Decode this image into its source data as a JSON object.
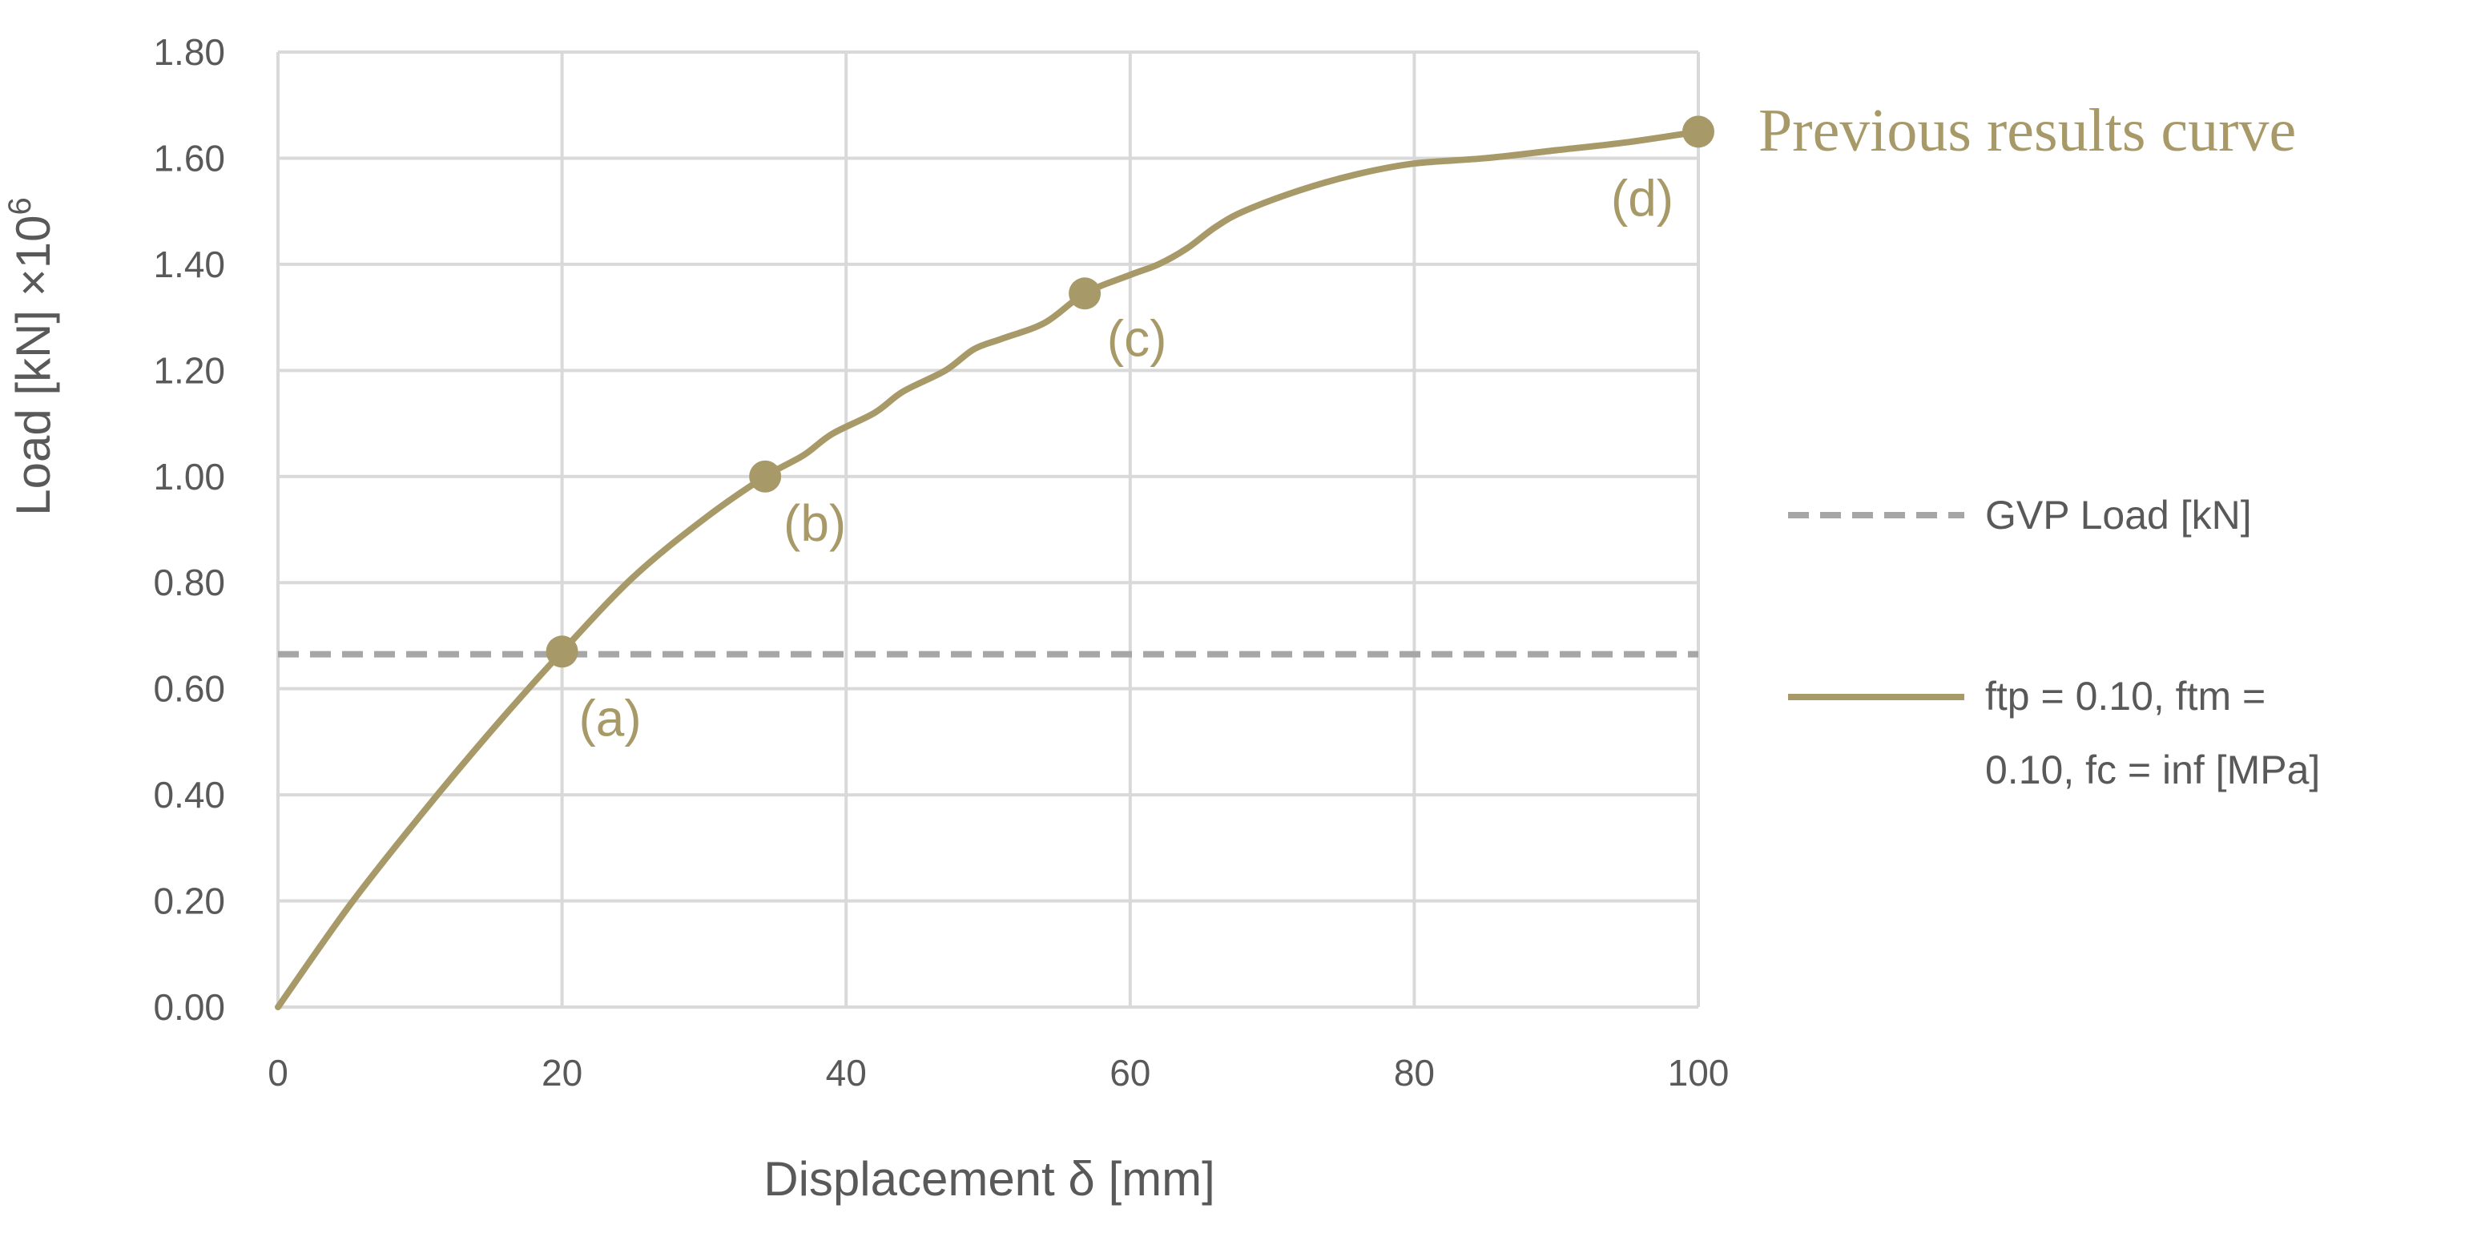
{
  "chart_data": {
    "type": "line",
    "xlabel": "Displacement δ [mm]",
    "ylabel": "Load [kN]  ×10",
    "ylabel_exponent": "6",
    "xlim": [
      0,
      100
    ],
    "ylim": [
      0,
      1.8
    ],
    "x_ticks": [
      "0",
      "20",
      "40",
      "60",
      "80",
      "100"
    ],
    "y_ticks": [
      "0.00",
      "0.20",
      "0.40",
      "0.60",
      "0.80",
      "1.00",
      "1.20",
      "1.40",
      "1.60",
      "1.80"
    ],
    "grid": true,
    "legend_position": "right",
    "series": [
      {
        "name": "GVP Load [kN]",
        "style": "dashed",
        "color": "#A6A6A6",
        "x": [
          0,
          100
        ],
        "y": [
          0.665,
          0.665
        ]
      },
      {
        "name": "ftp = 0.10, ftm = 0.10, fc = inf [MPa]",
        "legend_lines": [
          "ftp = 0.10, ftm =",
          "0.10, fc = inf [MPa]"
        ],
        "style": "solid",
        "color": "#A89A68",
        "x": [
          0,
          5,
          10,
          15,
          20,
          25,
          30,
          34.3,
          37,
          39,
          42,
          44,
          47,
          49,
          51,
          54,
          56.8,
          60,
          62,
          64,
          66,
          68,
          72,
          76,
          80,
          85,
          90,
          95,
          100
        ],
        "y": [
          0,
          0.19,
          0.36,
          0.52,
          0.67,
          0.81,
          0.92,
          1.0,
          1.04,
          1.08,
          1.12,
          1.16,
          1.2,
          1.24,
          1.26,
          1.29,
          1.345,
          1.38,
          1.4,
          1.43,
          1.47,
          1.5,
          1.54,
          1.57,
          1.59,
          1.6,
          1.615,
          1.63,
          1.65
        ]
      }
    ],
    "markers": [
      {
        "label": "(a)",
        "x": 20,
        "y": 0.67
      },
      {
        "label": "(b)",
        "x": 34.3,
        "y": 1.0
      },
      {
        "label": "(c)",
        "x": 56.8,
        "y": 1.345
      },
      {
        "label": "(d)",
        "x": 100,
        "y": 1.65
      }
    ],
    "annotation": "Previous results curve",
    "annotation_color": "#A89A68"
  }
}
